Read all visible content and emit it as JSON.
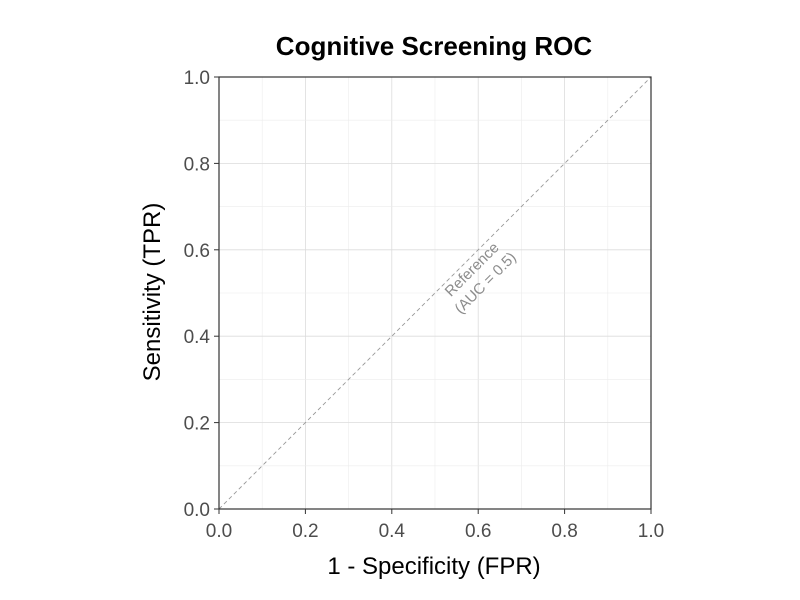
{
  "chart_data": {
    "type": "line",
    "title": "Cognitive Screening ROC",
    "xlabel": "1 - Specificity (FPR)",
    "ylabel": "Sensitivity (TPR)",
    "xlim": [
      0,
      1
    ],
    "ylim": [
      0,
      1
    ],
    "x_ticks": [
      0.0,
      0.2,
      0.4,
      0.6,
      0.8,
      1.0
    ],
    "y_ticks": [
      0.0,
      0.2,
      0.4,
      0.6,
      0.8,
      1.0
    ],
    "x_tick_labels": [
      "0.0",
      "0.2",
      "0.4",
      "0.6",
      "0.8",
      "1.0"
    ],
    "y_tick_labels": [
      "0.0",
      "0.2",
      "0.4",
      "0.6",
      "0.8",
      "1.0"
    ],
    "grid": true,
    "series": [
      {
        "line_style": "dashed",
        "color": "#999999",
        "x": [
          0,
          1
        ],
        "y": [
          0,
          1
        ]
      }
    ],
    "annotations": [
      {
        "lines": [
          "Reference",
          "(AUC = 0.5)"
        ],
        "x": 0.6,
        "y": 0.54
      }
    ]
  }
}
